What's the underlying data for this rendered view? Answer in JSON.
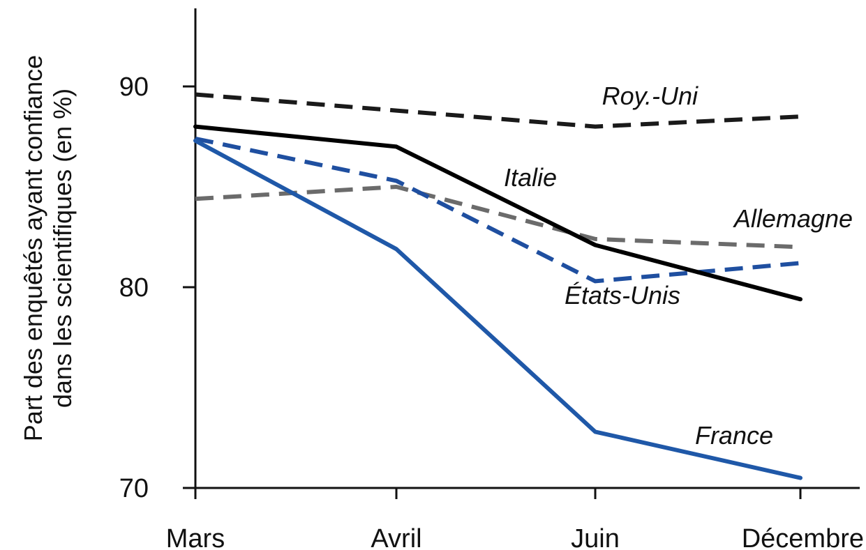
{
  "chart_data": {
    "type": "line",
    "title": "",
    "xlabel": "",
    "ylabel": "Part des enquêtés ayant confiance dans les scientifiques (en %)",
    "ylabel_lines": [
      "Part des enquêtés ayant confiance",
      "dans les scientifiques (en %)"
    ],
    "categories": [
      "Mars",
      "Avril",
      "Juin",
      "Décembre"
    ],
    "ylim": [
      70,
      94
    ],
    "yticks": [
      70,
      80,
      90
    ],
    "ytick_labels": [
      "70",
      "80",
      "90"
    ],
    "grid": false,
    "legend": "inline labels",
    "series": [
      {
        "name": "Roy.-Uni",
        "values": [
          89.6,
          88.8,
          88.0,
          88.5
        ],
        "color": "#1a1a1a",
        "dashed": true
      },
      {
        "name": "Italie",
        "values": [
          88.0,
          87.0,
          82.1,
          79.4
        ],
        "color": "#000000",
        "dashed": false
      },
      {
        "name": "Allemagne",
        "values": [
          84.4,
          85.0,
          82.4,
          82.0
        ],
        "color": "#6b6b6b",
        "dashed": true
      },
      {
        "name": "États-Unis",
        "values": [
          87.4,
          85.3,
          80.3,
          81.2
        ],
        "color": "#1f4fa0",
        "dashed": true
      },
      {
        "name": "France",
        "values": [
          87.3,
          81.9,
          72.8,
          70.5
        ],
        "color": "#1f58a8",
        "dashed": false
      }
    ]
  }
}
